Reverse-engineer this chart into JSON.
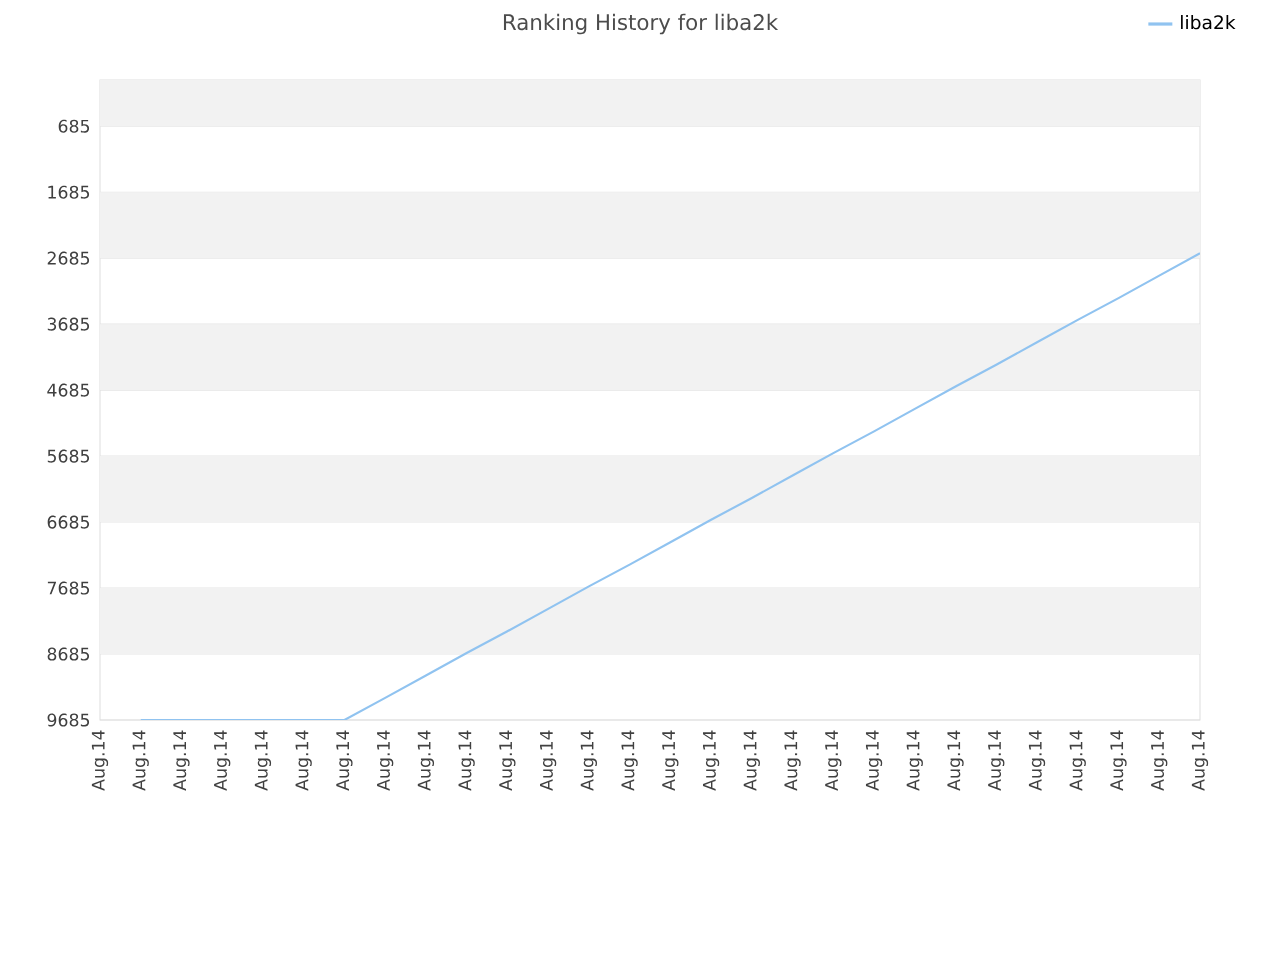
{
  "chart_data": {
    "type": "line",
    "title": "Ranking History for liba2k",
    "categories": [
      "Aug.14",
      "Aug.14",
      "Aug.14",
      "Aug.14",
      "Aug.14",
      "Aug.14",
      "Aug.14",
      "Aug.14",
      "Aug.14",
      "Aug.14",
      "Aug.14",
      "Aug.14",
      "Aug.14",
      "Aug.14",
      "Aug.14",
      "Aug.14",
      "Aug.14",
      "Aug.14",
      "Aug.14",
      "Aug.14",
      "Aug.14",
      "Aug.14",
      "Aug.14",
      "Aug.14",
      "Aug.14",
      "Aug.14",
      "Aug.14",
      "Aug.14"
    ],
    "series": [
      {
        "name": "liba2k",
        "color": "#90c3f0",
        "values": [
          null,
          9685,
          9685,
          9685,
          9685,
          9685,
          9685,
          9350,
          9010,
          8670,
          8340,
          8000,
          7660,
          7330,
          6990,
          6650,
          6320,
          5980,
          5640,
          5310,
          4970,
          4630,
          4300,
          3960,
          3620,
          3290,
          2950,
          2610
        ]
      }
    ],
    "ylim": [
      9685,
      -15
    ],
    "yticks": [
      685,
      1685,
      2685,
      3685,
      4685,
      5685,
      6685,
      7685,
      8685,
      9685
    ],
    "grid": "y",
    "legend": "top right"
  }
}
